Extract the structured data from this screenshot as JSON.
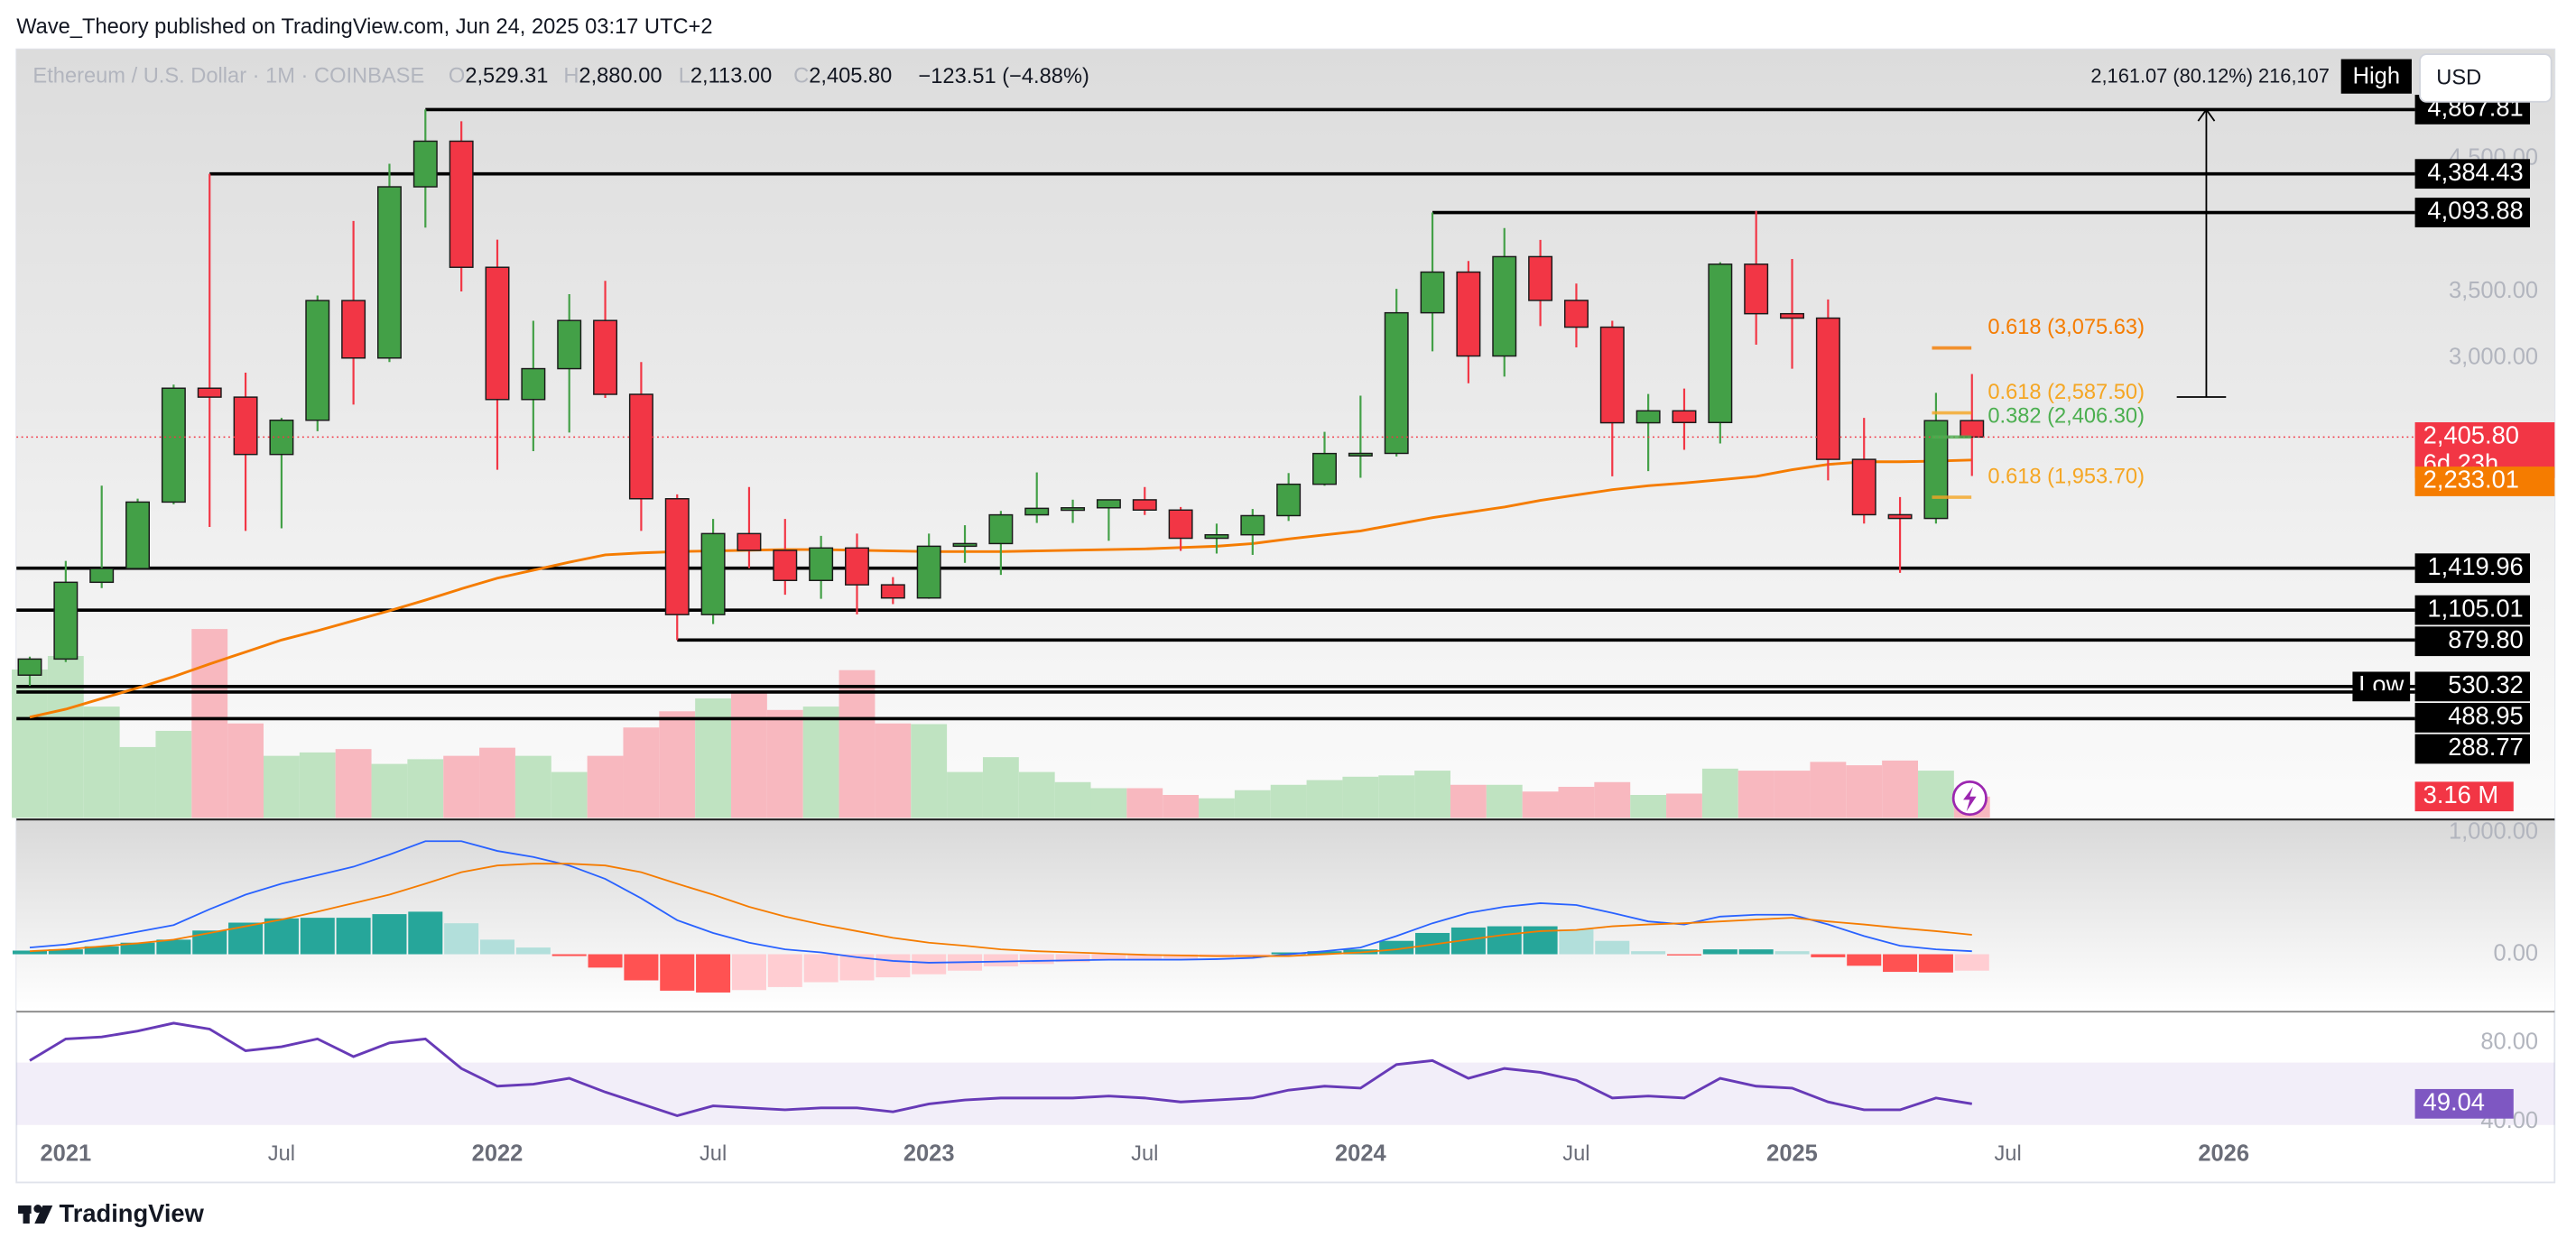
{
  "page": {
    "publisher": "Wave_Theory published on TradingView.com, Jun 24, 2025 03:17 UTC+2",
    "footer": "TradingView",
    "currency": "USD"
  },
  "header": {
    "symbol": "Ethereum / U.S. Dollar · 1M · COINBASE",
    "ohlc": [
      {
        "key": "O",
        "value": "2,529.31"
      },
      {
        "key": "H",
        "value": "2,880.00"
      },
      {
        "key": "L",
        "value": "2,113.00"
      },
      {
        "key": "C",
        "value": "2,405.80"
      }
    ],
    "change": "−123.51 (−4.88%)",
    "high_tag": "High"
  },
  "chart_data": {
    "type": "candlestick",
    "xlim": [
      -0.37,
      70.2
    ],
    "xticks": [
      {
        "value": 1,
        "label": "2021"
      },
      {
        "value": 7,
        "label": "Jul"
      },
      {
        "value": 13,
        "label": "2022"
      },
      {
        "value": 19,
        "label": "Jul"
      },
      {
        "value": 25,
        "label": "2023"
      },
      {
        "value": 31,
        "label": "Jul"
      },
      {
        "value": 37,
        "label": "2024"
      },
      {
        "value": 43,
        "label": "Jul"
      },
      {
        "value": 49,
        "label": "2025"
      },
      {
        "value": 55,
        "label": "Jul"
      },
      {
        "value": 61,
        "label": "2026"
      }
    ],
    "ylim": [
      -457,
      5321
    ],
    "yticks": [
      {
        "value": 4500,
        "label": "4,500.00"
      },
      {
        "value": 3500,
        "label": "3,500.00"
      },
      {
        "value": 3000,
        "label": "3,000.00"
      }
    ],
    "candles": {
      "up_color": "#43a047",
      "down_color": "#f23645",
      "open": [
        616,
        737,
        1314,
        1417,
        1917,
        2773,
        2706,
        2275,
        2532,
        3432,
        3000,
        4287,
        4630,
        3682,
        2688,
        2920,
        3282,
        2727,
        1942,
        1071,
        1680,
        1554,
        1328,
        1572,
        1295,
        1196,
        1585,
        1605,
        1821,
        1870,
        1874,
        1934,
        1857,
        1645,
        1671,
        1815,
        2051,
        2282,
        2283,
        3340,
        3646,
        3015,
        3762,
        3433,
        3232,
        2513,
        2603,
        2515,
        3705,
        3333,
        3300,
        2238,
        1822,
        1794,
        2529.31
      ],
      "high": [
        755,
        1475,
        2040,
        1943,
        2800,
        4384.43,
        2890,
        2550,
        3470,
        4030,
        4460,
        4867.81,
        4780,
        3890,
        3280,
        3480,
        3580,
        2970,
        1975,
        1790,
        2030,
        1790,
        1663,
        1680,
        1353,
        1680,
        1743,
        1850,
        2140,
        1935,
        1930,
        2030,
        1880,
        1755,
        1865,
        2135,
        2445,
        2717,
        3520,
        4093.88,
        3729,
        3977,
        3888,
        3560,
        3280,
        2730,
        2770,
        3720,
        4107,
        3745,
        3440,
        2550,
        1955,
        2738,
        2880
      ],
      "low": [
        535,
        714,
        1270,
        1440,
        1900,
        1730,
        1700,
        1720,
        2450,
        2650,
        2970,
        3980,
        3500,
        2160,
        2300,
        2440,
        2700,
        1700,
        879.8,
        1000,
        1420,
        1220,
        1190,
        1073,
        1150,
        1190,
        1460,
        1370,
        1760,
        1760,
        1626,
        1820,
        1550,
        1530,
        1520,
        1775,
        2040,
        2100,
        2260,
        3050,
        2810,
        2860,
        3240,
        3080,
        2111,
        2150,
        2310,
        2357,
        3100,
        2920,
        2080,
        1755,
        1385,
        1755,
        2113
      ],
      "close": [
        737,
        1314,
        1417,
        1917,
        2773,
        2706,
        2275,
        2532,
        3432,
        3000,
        4287,
        4630,
        3682,
        2688,
        2920,
        3282,
        2727,
        1942,
        1071,
        1680,
        1554,
        1328,
        1572,
        1295,
        1196,
        1585,
        1605,
        1821,
        1870,
        1874,
        1934,
        1857,
        1645,
        1671,
        1815,
        2051,
        2282,
        2283,
        3340,
        3646,
        3015,
        3762,
        3433,
        3232,
        2513,
        2603,
        2515,
        3705,
        3333,
        3300,
        2238,
        1822,
        1794,
        2529.31,
        2405.8
      ],
      "last_label": "2,405.80",
      "countdown": "6d 23h"
    },
    "ma": {
      "color": "#f57c00",
      "last_label": "2,233.01",
      "values": [
        300,
        360,
        440,
        520,
        605,
        700,
        790,
        880,
        950,
        1025,
        1100,
        1180,
        1265,
        1345,
        1405,
        1465,
        1520,
        1535,
        1545,
        1550,
        1555,
        1560,
        1560,
        1555,
        1550,
        1545,
        1545,
        1545,
        1550,
        1555,
        1560,
        1565,
        1575,
        1585,
        1605,
        1640,
        1670,
        1700,
        1750,
        1800,
        1840,
        1880,
        1930,
        1970,
        2010,
        2040,
        2060,
        2085,
        2110,
        2160,
        2200,
        2220,
        2220,
        2225,
        2233.01
      ]
    },
    "volume": {
      "up_color": "#bfe3c1",
      "down_color": "#f8b8bf",
      "last_label": "3.16 M",
      "values": [
        22,
        24,
        16.5,
        10.5,
        12.9,
        28,
        14,
        9.2,
        9.7,
        10.2,
        8,
        8.7,
        9.2,
        10.4,
        9.2,
        6.8,
        9.2,
        13.4,
        15.8,
        17.7,
        18.5,
        16,
        16.5,
        21.9,
        14,
        13.9,
        6.8,
        9,
        6.8,
        5.3,
        4.4,
        4.4,
        3.4,
        2.9,
        4.1,
        4.9,
        5.6,
        6.1,
        6.3,
        7,
        4.9,
        4.9,
        3.9,
        4.6,
        5.3,
        3.4,
        3.6,
        7.3,
        7,
        7,
        8.3,
        7.8,
        8.5,
        7,
        3.16
      ]
    },
    "levels": [
      {
        "value": 4867.81,
        "label": "4,867.81"
      },
      {
        "value": 4384.43,
        "label": "4,384.43"
      },
      {
        "value": 4093.88,
        "label": "4,093.88"
      },
      {
        "value": 1419.96,
        "label": "1,419.96"
      },
      {
        "value": 1105.01,
        "label": "1,105.01"
      },
      {
        "value": 879.8,
        "label": "879.80"
      },
      {
        "value": 530.32,
        "label": "530.32",
        "tag": "Low"
      },
      {
        "value": 488.95,
        "label": "488.95"
      },
      {
        "value": 288.77,
        "label": "288.77"
      }
    ],
    "fibs": [
      {
        "value": 3075.63,
        "label": "0.618 (3,075.63)",
        "color": "#f57c00"
      },
      {
        "value": 2587.5,
        "label": "0.618 (2,587.50)",
        "color": "#f5a623"
      },
      {
        "value": 2406.3,
        "label": "0.382 (2,406.30)",
        "color": "#4caf50"
      },
      {
        "value": 1953.7,
        "label": "0.618 (1,953.70)",
        "color": "#f5a623"
      }
    ],
    "measure": {
      "label": "2,161.07 (80.12%) 216,107",
      "change": 2161.07,
      "top": 4867.81
    },
    "macd": {
      "ylim": [
        -459,
        1095
      ],
      "yticks": [
        {
          "value": 1000,
          "label": "1,000.00"
        },
        {
          "value": 0,
          "label": "0.00"
        }
      ],
      "macd_color": "#2962ff",
      "signal_color": "#f57c00",
      "macd": [
        55,
        80,
        130,
        185,
        240,
        370,
        490,
        580,
        650,
        720,
        820,
        930,
        930,
        850,
        800,
        730,
        620,
        460,
        280,
        175,
        95,
        40,
        15,
        -25,
        -55,
        -70,
        -65,
        -60,
        -55,
        -50,
        -45,
        -45,
        -45,
        -40,
        -30,
        0,
        25,
        55,
        150,
        255,
        340,
        390,
        420,
        405,
        340,
        270,
        245,
        310,
        325,
        325,
        245,
        150,
        70,
        40,
        25
      ],
      "signal": [
        25,
        40,
        65,
        90,
        120,
        175,
        230,
        285,
        350,
        420,
        490,
        580,
        675,
        730,
        745,
        745,
        730,
        675,
        580,
        490,
        390,
        310,
        245,
        190,
        135,
        95,
        70,
        40,
        25,
        15,
        5,
        -5,
        -10,
        -15,
        -15,
        -15,
        0,
        15,
        40,
        80,
        120,
        160,
        190,
        200,
        230,
        245,
        255,
        270,
        285,
        300,
        270,
        245,
        215,
        190,
        160
      ],
      "hist": [
        30,
        40,
        65,
        95,
        120,
        195,
        260,
        295,
        300,
        300,
        330,
        350,
        255,
        120,
        55,
        -15,
        -110,
        -215,
        -300,
        -315,
        -295,
        -270,
        -230,
        -215,
        -190,
        -165,
        -135,
        -100,
        -80,
        -65,
        -50,
        -40,
        -35,
        -25,
        -15,
        15,
        25,
        40,
        110,
        175,
        220,
        230,
        230,
        205,
        110,
        25,
        -10,
        40,
        40,
        25,
        -25,
        -95,
        -145,
        -150,
        -135
      ]
    },
    "rsi": {
      "ylim": [
        38.3,
        95
      ],
      "yticks": [
        {
          "value": 80,
          "label": "80.00"
        },
        {
          "value": 40,
          "label": "40.00"
        }
      ],
      "band": [
        30,
        70
      ],
      "color": "#673ab7",
      "last_label": "49.04",
      "values": [
        71,
        82,
        83,
        86,
        90,
        87,
        76,
        78,
        82,
        73,
        80,
        82,
        67,
        58,
        59,
        62,
        55,
        49,
        43,
        48,
        47,
        46,
        47,
        47,
        45,
        49,
        51,
        52,
        52,
        52,
        53,
        52,
        50,
        51,
        52,
        56,
        58,
        57,
        69,
        71,
        62,
        67,
        65,
        61,
        52,
        53,
        52,
        62,
        58,
        57,
        50,
        46,
        46,
        52,
        49.04
      ]
    }
  }
}
